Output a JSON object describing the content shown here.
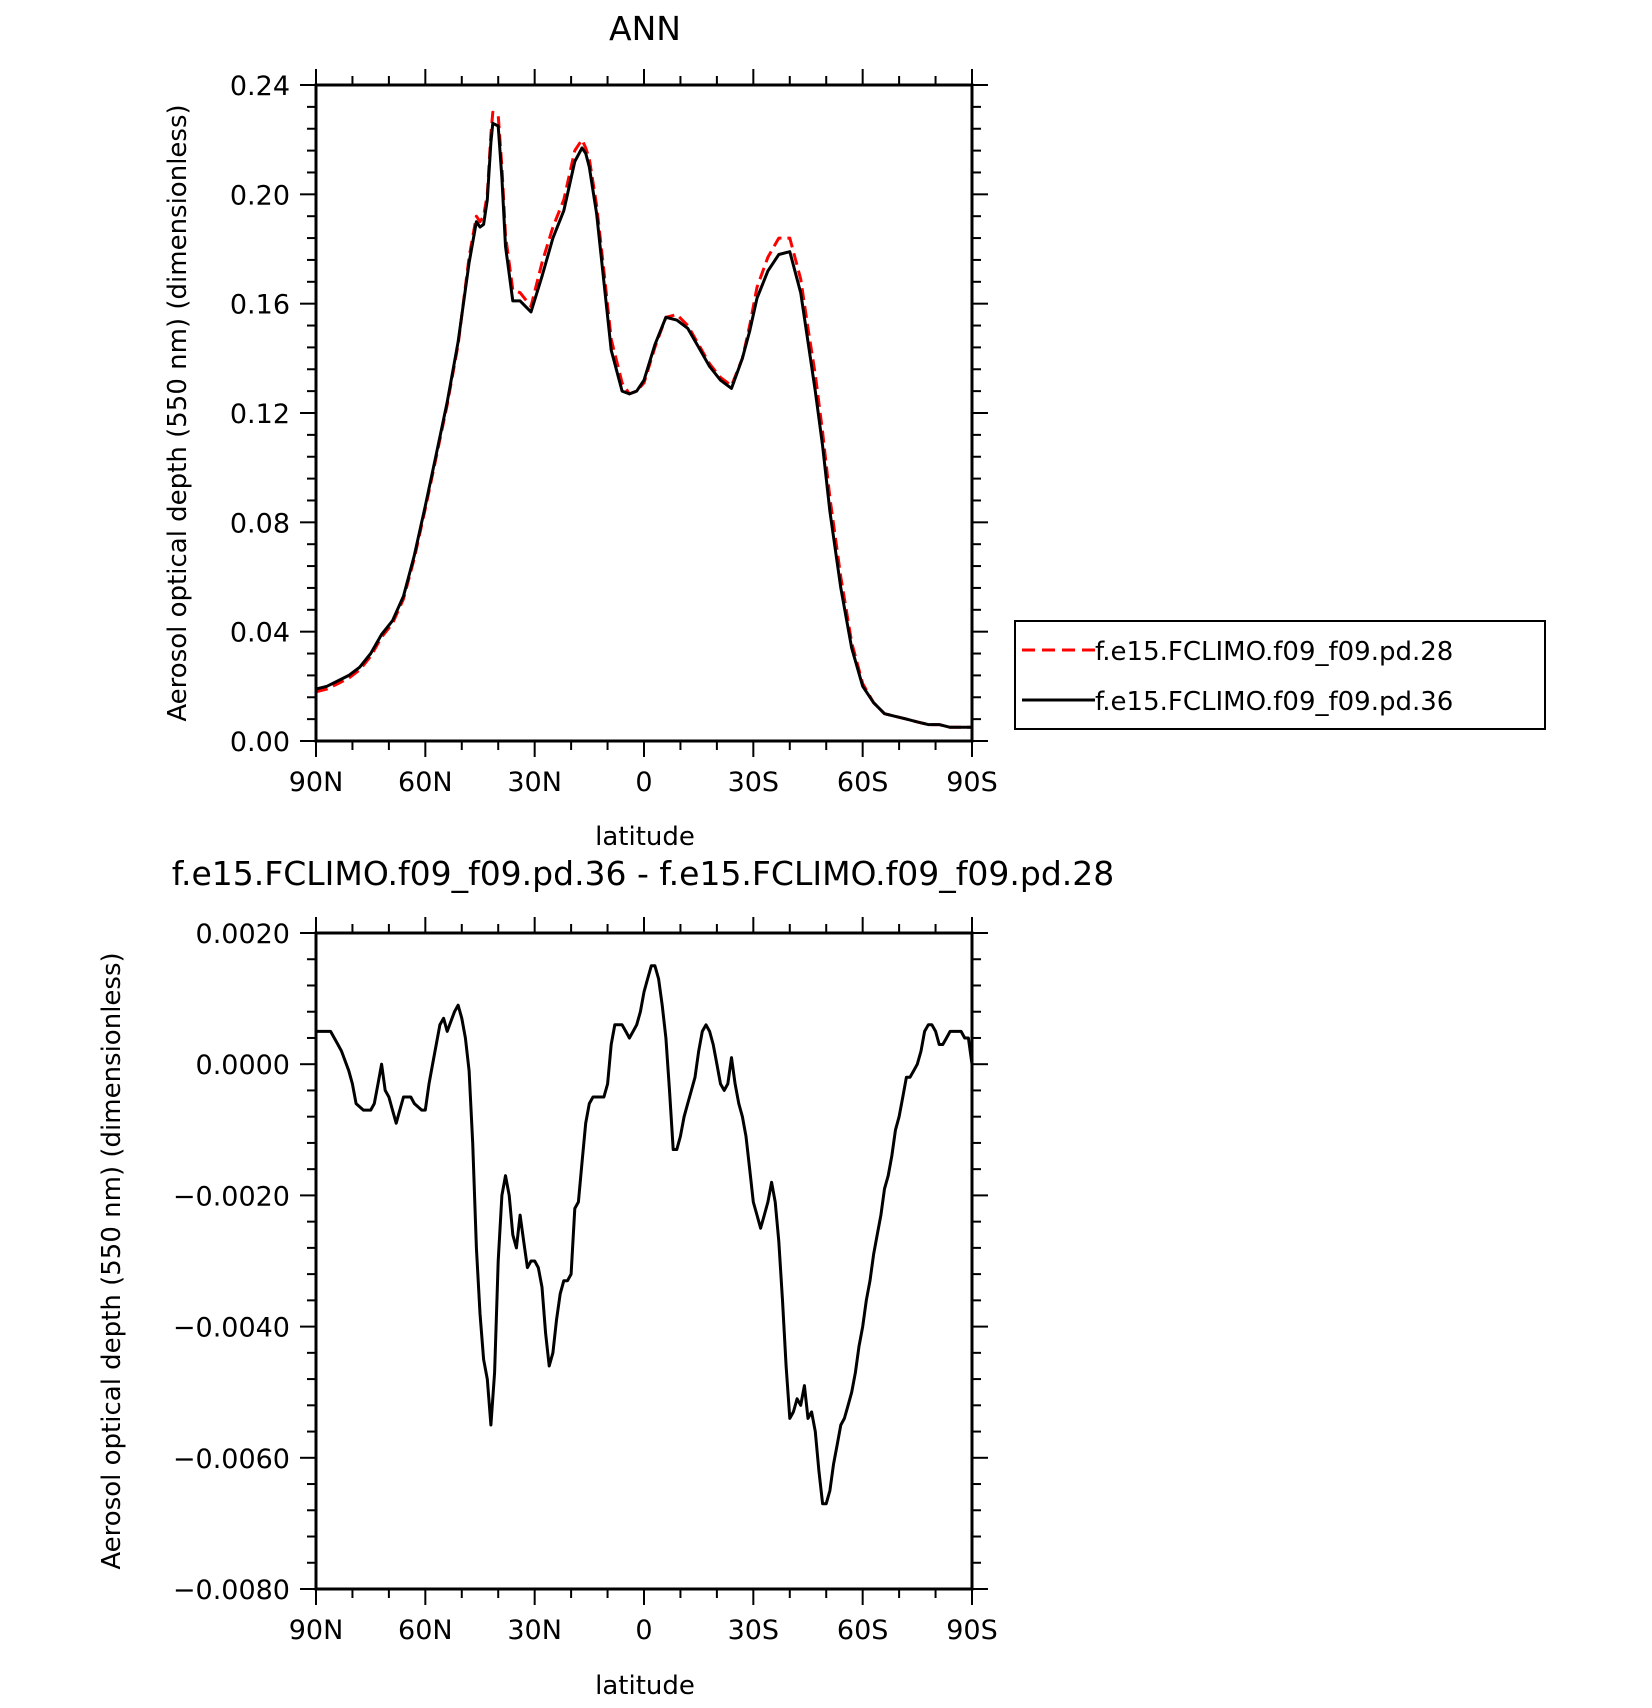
{
  "chart_data": [
    {
      "type": "line",
      "title": "ANN",
      "xlabel": "latitude",
      "ylabel": "Aerosol optical depth (550 nm) (dimensionless)",
      "xlim": [
        90,
        -90
      ],
      "ylim": [
        0.0,
        0.24
      ],
      "x_ticks": [
        {
          "value": 90,
          "label": "90N"
        },
        {
          "value": 60,
          "label": "60N"
        },
        {
          "value": 30,
          "label": "30N"
        },
        {
          "value": 0,
          "label": "0"
        },
        {
          "value": -30,
          "label": "30S"
        },
        {
          "value": -60,
          "label": "60S"
        },
        {
          "value": -90,
          "label": "90S"
        }
      ],
      "y_ticks": [
        {
          "value": 0.0,
          "label": "0.00"
        },
        {
          "value": 0.04,
          "label": "0.04"
        },
        {
          "value": 0.08,
          "label": "0.08"
        },
        {
          "value": 0.12,
          "label": "0.12"
        },
        {
          "value": 0.16,
          "label": "0.16"
        },
        {
          "value": 0.2,
          "label": "0.20"
        },
        {
          "value": 0.24,
          "label": "0.24"
        }
      ],
      "legend": {
        "placement": "right",
        "entries": [
          "f.e15.FCLIMO.f09_f09.pd.28",
          "f.e15.FCLIMO.f09_f09.pd.36"
        ]
      },
      "series": [
        {
          "name": "f.e15.FCLIMO.f09_f09.pd.28",
          "color": "#ff0000",
          "style": "dashed",
          "x": [
            90,
            87,
            84,
            81,
            78,
            75,
            72,
            69,
            66,
            63,
            60,
            57,
            54,
            51,
            48,
            46,
            45,
            44,
            43,
            42,
            41.5,
            40,
            39,
            38,
            36,
            34,
            31,
            28,
            25,
            22,
            19,
            17,
            16,
            15,
            13,
            11,
            9,
            6,
            4,
            2,
            0,
            -3,
            -6,
            -9,
            -12,
            -15,
            -18,
            -21,
            -24,
            -27,
            -29,
            -31,
            -34,
            -37,
            -40,
            -43,
            -45,
            -47,
            -49,
            -51,
            -54,
            -57,
            -60,
            -63,
            -66,
            -69,
            -72,
            -75,
            -78,
            -81,
            -84,
            -87,
            -90
          ],
          "y": [
            0.018,
            0.019,
            0.021,
            0.023,
            0.026,
            0.031,
            0.038,
            0.043,
            0.052,
            0.067,
            0.085,
            0.104,
            0.123,
            0.145,
            0.177,
            0.192,
            0.19,
            0.192,
            0.2,
            0.222,
            0.23,
            0.229,
            0.21,
            0.185,
            0.165,
            0.164,
            0.159,
            0.175,
            0.188,
            0.198,
            0.216,
            0.22,
            0.217,
            0.213,
            0.196,
            0.172,
            0.147,
            0.131,
            0.127,
            0.128,
            0.131,
            0.144,
            0.155,
            0.156,
            0.152,
            0.145,
            0.138,
            0.133,
            0.13,
            0.14,
            0.152,
            0.166,
            0.177,
            0.184,
            0.184,
            0.169,
            0.151,
            0.134,
            0.113,
            0.089,
            0.06,
            0.036,
            0.021,
            0.014,
            0.01,
            0.009,
            0.008,
            0.007,
            0.006,
            0.006,
            0.005,
            0.005,
            0.005
          ]
        },
        {
          "name": "f.e15.FCLIMO.f09_f09.pd.36",
          "color": "#000000",
          "style": "solid",
          "x": [
            90,
            87,
            84,
            81,
            78,
            75,
            72,
            69,
            66,
            63,
            60,
            57,
            54,
            51,
            48,
            46,
            45,
            44,
            43,
            42,
            41.5,
            40,
            39,
            38,
            36,
            34,
            31,
            28,
            25,
            22,
            19,
            17,
            16,
            15,
            13,
            11,
            9,
            6,
            4,
            2,
            0,
            -3,
            -6,
            -9,
            -12,
            -15,
            -18,
            -21,
            -24,
            -27,
            -29,
            -31,
            -34,
            -37,
            -40,
            -43,
            -45,
            -47,
            -49,
            -51,
            -54,
            -57,
            -60,
            -63,
            -66,
            -69,
            -72,
            -75,
            -78,
            -81,
            -84,
            -87,
            -90
          ],
          "y": [
            0.019,
            0.02,
            0.022,
            0.024,
            0.027,
            0.032,
            0.039,
            0.044,
            0.053,
            0.068,
            0.086,
            0.105,
            0.124,
            0.146,
            0.175,
            0.19,
            0.188,
            0.189,
            0.198,
            0.219,
            0.226,
            0.225,
            0.206,
            0.181,
            0.161,
            0.161,
            0.157,
            0.17,
            0.184,
            0.194,
            0.212,
            0.217,
            0.215,
            0.21,
            0.193,
            0.168,
            0.143,
            0.128,
            0.127,
            0.128,
            0.132,
            0.145,
            0.155,
            0.154,
            0.151,
            0.144,
            0.137,
            0.132,
            0.129,
            0.14,
            0.15,
            0.162,
            0.172,
            0.178,
            0.179,
            0.164,
            0.146,
            0.128,
            0.108,
            0.084,
            0.056,
            0.034,
            0.02,
            0.014,
            0.01,
            0.009,
            0.008,
            0.007,
            0.006,
            0.006,
            0.005,
            0.005,
            0.005
          ]
        }
      ]
    },
    {
      "type": "line",
      "title": "f.e15.FCLIMO.f09_f09.pd.36 - f.e15.FCLIMO.f09_f09.pd.28",
      "xlabel": "latitude",
      "ylabel": "Aerosol optical depth (550 nm) (dimensionless)",
      "xlim": [
        90,
        -90
      ],
      "ylim": [
        -0.008,
        0.002
      ],
      "x_ticks": [
        {
          "value": 90,
          "label": "90N"
        },
        {
          "value": 60,
          "label": "60N"
        },
        {
          "value": 30,
          "label": "30N"
        },
        {
          "value": 0,
          "label": "0"
        },
        {
          "value": -30,
          "label": "30S"
        },
        {
          "value": -60,
          "label": "60S"
        },
        {
          "value": -90,
          "label": "90S"
        }
      ],
      "y_ticks": [
        {
          "value": 0.002,
          "label": "0.0020"
        },
        {
          "value": 0.0,
          "label": "0.0000"
        },
        {
          "value": -0.002,
          "label": "−0.0020"
        },
        {
          "value": -0.004,
          "label": "−0.0040"
        },
        {
          "value": -0.006,
          "label": "−0.0060"
        },
        {
          "value": -0.008,
          "label": "−0.0080"
        }
      ],
      "series": [
        {
          "color": "#000000",
          "style": "solid",
          "x": [
            90,
            88,
            86,
            84,
            83,
            81,
            80,
            79,
            77,
            75,
            74,
            73,
            72,
            71,
            70,
            69,
            68,
            67,
            66,
            64,
            63,
            61,
            60,
            59,
            58,
            56,
            55,
            54,
            52,
            51,
            50,
            49,
            48,
            47,
            46,
            45,
            44,
            43,
            42,
            41,
            40,
            39,
            38,
            37,
            36,
            35,
            34,
            33,
            32,
            31,
            30,
            29,
            28,
            27,
            26,
            25,
            24,
            23,
            22,
            21,
            20,
            19,
            18,
            17,
            16,
            15,
            14,
            13,
            12,
            11,
            10,
            9,
            8,
            7,
            6,
            5,
            4,
            3,
            2,
            1,
            0,
            -1,
            -2,
            -3,
            -4,
            -5,
            -6,
            -7,
            -8,
            -9,
            -10,
            -11,
            -12,
            -13,
            -14,
            -15,
            -16,
            -17,
            -18,
            -19,
            -20,
            -21,
            -22,
            -23,
            -24,
            -25,
            -26,
            -27,
            -28,
            -29,
            -30,
            -31,
            -32,
            -33,
            -34,
            -35,
            -36,
            -37,
            -38,
            -39,
            -40,
            -41,
            -42,
            -43,
            -44,
            -45,
            -46,
            -47,
            -48,
            -49,
            -50,
            -51,
            -52,
            -53,
            -54,
            -55,
            -56,
            -57,
            -58,
            -59,
            -60,
            -61,
            -62,
            -63,
            -64,
            -65,
            -66,
            -67,
            -68,
            -69,
            -70,
            -71,
            -72,
            -73,
            -74,
            -75,
            -76,
            -77,
            -78,
            -79,
            -80,
            -81,
            -82,
            -83,
            -84,
            -85,
            -86,
            -87,
            -88,
            -89,
            -90
          ],
          "y": [
            0.0005,
            0.0005,
            0.0005,
            0.0003,
            0.0002,
            -0.0001,
            -0.0003,
            -0.0006,
            -0.0007,
            -0.0007,
            -0.0006,
            -0.0003,
            0.0,
            -0.0004,
            -0.0005,
            -0.0007,
            -0.0009,
            -0.0007,
            -0.0005,
            -0.0005,
            -0.0006,
            -0.0007,
            -0.0007,
            -0.0003,
            0.0,
            0.0006,
            0.0007,
            0.0005,
            0.0008,
            0.0009,
            0.0007,
            0.0004,
            -0.0001,
            -0.0012,
            -0.0028,
            -0.0038,
            -0.0045,
            -0.0048,
            -0.0055,
            -0.0047,
            -0.003,
            -0.002,
            -0.0017,
            -0.002,
            -0.0026,
            -0.0028,
            -0.0023,
            -0.0027,
            -0.0031,
            -0.003,
            -0.003,
            -0.0031,
            -0.0034,
            -0.0041,
            -0.0046,
            -0.0044,
            -0.0039,
            -0.0035,
            -0.0033,
            -0.0033,
            -0.0032,
            -0.0022,
            -0.0021,
            -0.0015,
            -0.0009,
            -0.0006,
            -0.0005,
            -0.0005,
            -0.0005,
            -0.0005,
            -0.0003,
            0.0003,
            0.0006,
            0.0006,
            0.0006,
            0.0005,
            0.0004,
            0.0005,
            0.0006,
            0.0008,
            0.0011,
            0.0013,
            0.0015,
            0.0015,
            0.0013,
            0.0009,
            0.0004,
            -0.0004,
            -0.0013,
            -0.0013,
            -0.0011,
            -0.0008,
            -0.0006,
            -0.0004,
            -0.0002,
            0.0002,
            0.0005,
            0.0006,
            0.0005,
            0.0003,
            0.0,
            -0.0003,
            -0.0004,
            -0.0003,
            0.0001,
            -0.0003,
            -0.0006,
            -0.0008,
            -0.0011,
            -0.0016,
            -0.0021,
            -0.0023,
            -0.0025,
            -0.0023,
            -0.0021,
            -0.0018,
            -0.0021,
            -0.0027,
            -0.0036,
            -0.0046,
            -0.0054,
            -0.0053,
            -0.0051,
            -0.0052,
            -0.0049,
            -0.0054,
            -0.0053,
            -0.0056,
            -0.0062,
            -0.0067,
            -0.0067,
            -0.0065,
            -0.0061,
            -0.0058,
            -0.0055,
            -0.0054,
            -0.0052,
            -0.005,
            -0.0047,
            -0.0043,
            -0.004,
            -0.0036,
            -0.0033,
            -0.0029,
            -0.0026,
            -0.0023,
            -0.0019,
            -0.0017,
            -0.0014,
            -0.001,
            -0.0008,
            -0.0005,
            -0.0002,
            -0.0002,
            -0.0001,
            0.0,
            0.0002,
            0.0005,
            0.0006,
            0.0006,
            0.0005,
            0.0003,
            0.0003,
            0.0004,
            0.0005,
            0.0005,
            0.0005,
            0.0005,
            0.0004,
            0.0004,
            0.0
          ]
        }
      ]
    }
  ]
}
